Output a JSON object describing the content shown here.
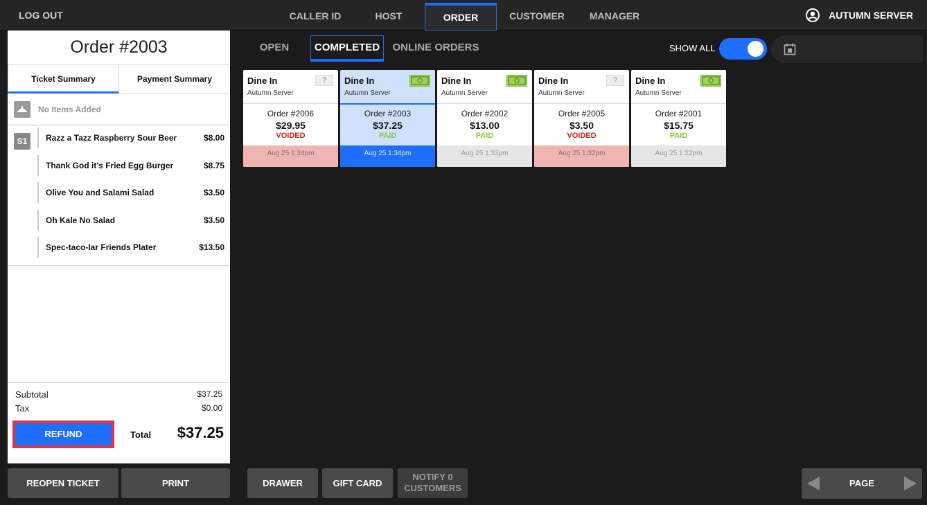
{
  "nav": {
    "logout": "LOG OUT",
    "tabs": [
      {
        "label": "CALLER ID"
      },
      {
        "label": "HOST"
      },
      {
        "label": "ORDER"
      },
      {
        "label": "CUSTOMER"
      },
      {
        "label": "MANAGER"
      }
    ],
    "user": "AUTUMN SERVER"
  },
  "ticket": {
    "title": "Order #2003",
    "tabs": [
      "Ticket Summary",
      "Payment Summary"
    ],
    "no_items": "No Items Added",
    "seat": "S1",
    "items": [
      {
        "name": "Razz a Tazz Raspberry Sour Beer",
        "price": "$8.00"
      },
      {
        "name": "Thank God it's Fried Egg Burger",
        "price": "$8.75"
      },
      {
        "name": "Olive You and Salami Salad",
        "price": "$3.50"
      },
      {
        "name": "Oh Kale No Salad",
        "price": "$3.50"
      },
      {
        "name": "Spec-taco-lar Friends Plater",
        "price": "$13.50"
      }
    ],
    "subtotal_label": "Subtotal",
    "subtotal": "$37.25",
    "tax_label": "Tax",
    "tax": "$0.00",
    "refund": "REFUND",
    "total_label": "Total",
    "total": "$37.25"
  },
  "left_buttons": {
    "reopen": "REOPEN TICKET",
    "print": "PRINT"
  },
  "filters": {
    "tabs": [
      "OPEN",
      "COMPLETED",
      "ONLINE ORDERS"
    ],
    "show_all": "SHOW ALL"
  },
  "orders": [
    {
      "type": "Dine In",
      "server": "Autumn Server",
      "icon": "question-icon",
      "number": "Order #2006",
      "amount": "$29.95",
      "status": "VOIDED",
      "time": "Aug 25 1:34pm"
    },
    {
      "type": "Dine In",
      "server": "Autumn Server",
      "icon": "cash-icon",
      "number": "Order #2003",
      "amount": "$37.25",
      "status": "PAID",
      "time": "Aug 25 1:34pm"
    },
    {
      "type": "Dine In",
      "server": "Autumn Server",
      "icon": "cash-icon",
      "number": "Order #2002",
      "amount": "$13.00",
      "status": "PAID",
      "time": "Aug 25 1:33pm"
    },
    {
      "type": "Dine In",
      "server": "Autumn Server",
      "icon": "question-icon",
      "number": "Order #2005",
      "amount": "$3.50",
      "status": "VOIDED",
      "time": "Aug 25 1:32pm"
    },
    {
      "type": "Dine In",
      "server": "Autumn Server",
      "icon": "cash-icon",
      "number": "Order #2001",
      "amount": "$15.75",
      "status": "PAID",
      "time": "Aug 25 1:22pm"
    }
  ],
  "bottom": {
    "drawer": "DRAWER",
    "gift_card": "GIFT CARD",
    "notify_line1": "NOTIFY 0",
    "notify_line2": "CUSTOMERS",
    "page": "PAGE"
  },
  "colors": {
    "accent": "#1f6fff",
    "voided": "#d0201b",
    "paid": "#8cc63f",
    "refund_outline": "#e0353f"
  }
}
